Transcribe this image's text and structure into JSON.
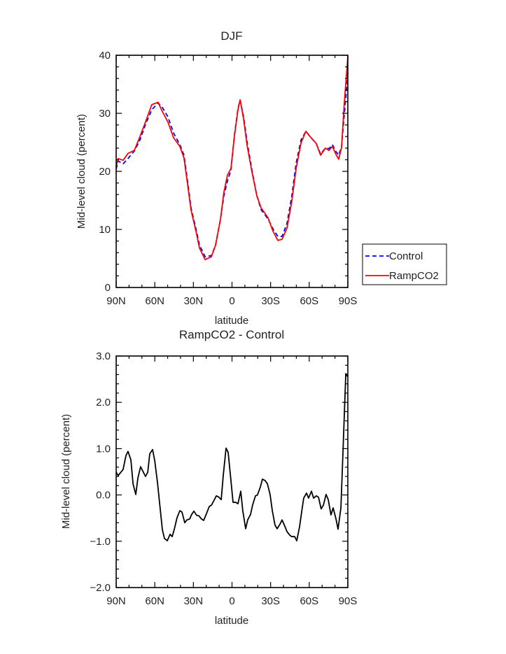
{
  "chart_data": [
    {
      "type": "line",
      "title": "DJF",
      "xlabel": "latitude",
      "ylabel": "Mid-level cloud (percent)",
      "xlim": [
        90,
        -90
      ],
      "ylim": [
        0,
        40
      ],
      "xticks": [
        90,
        60,
        30,
        0,
        -30,
        -60,
        -90
      ],
      "xtick_labels": [
        "90N",
        "60N",
        "30N",
        "0",
        "30S",
        "60S",
        "90S"
      ],
      "yticks": [
        0,
        10,
        20,
        30,
        40
      ],
      "ytick_labels": [
        "0",
        "10",
        "20",
        "30",
        "40"
      ],
      "legend": {
        "placement": "outside-right",
        "entries": [
          "Control",
          "RampCO2"
        ]
      },
      "series": [
        {
          "name": "Control",
          "color": "#0000ff",
          "style": "dashed",
          "x": [
            90,
            88.4,
            84.6,
            80.8,
            75.9,
            71.5,
            67.2,
            62.3,
            57.4,
            54.1,
            49.8,
            45.4,
            40.5,
            37.3,
            34.5,
            31.8,
            28.0,
            25.3,
            20.9,
            16.0,
            12.8,
            9.0,
            6.3,
            3.5,
            0.8,
            -1.9,
            -4.6,
            -6.3,
            -9.0,
            -11.7,
            -15.5,
            -19.3,
            -22.6,
            -28.0,
            -31.8,
            -35.6,
            -38.9,
            -42.7,
            -46.5,
            -49.8,
            -53.6,
            -57.4,
            -60.6,
            -65.5,
            -68.8,
            -72.6,
            -75.3,
            -78.0,
            -80.8,
            -82.9,
            -85.1,
            -87.3,
            -88.9,
            -90
          ],
          "y": [
            20.4,
            21.8,
            21.3,
            22.2,
            23.5,
            25.4,
            28.1,
            30.6,
            31.8,
            31.0,
            29.4,
            26.6,
            24.6,
            22.8,
            18.2,
            13.7,
            10.1,
            7.3,
            5.3,
            5.5,
            7.3,
            11.8,
            15.8,
            18.4,
            20.2,
            26.3,
            30.8,
            32.3,
            29.4,
            25.1,
            20.2,
            15.8,
            13.4,
            11.8,
            10.1,
            8.8,
            8.8,
            11.0,
            15.8,
            21.4,
            25.4,
            26.9,
            26.0,
            24.8,
            23.0,
            24.0,
            23.9,
            24.6,
            23.4,
            22.8,
            24.2,
            29.9,
            33.9,
            37.0
          ]
        },
        {
          "name": "RampCO2",
          "color": "#ff0000",
          "style": "solid",
          "x": [
            90,
            88.4,
            84.6,
            80.8,
            75.9,
            71.5,
            67.2,
            62.3,
            57.4,
            54.1,
            49.8,
            45.4,
            40.5,
            37.3,
            34.5,
            31.8,
            28.0,
            25.3,
            20.9,
            16.0,
            12.8,
            9.0,
            6.3,
            3.5,
            0.8,
            -1.9,
            -4.6,
            -6.3,
            -9.0,
            -11.7,
            -15.5,
            -19.3,
            -22.6,
            -28.0,
            -31.8,
            -35.6,
            -38.9,
            -42.7,
            -46.5,
            -49.8,
            -53.6,
            -57.4,
            -60.6,
            -65.5,
            -68.8,
            -72.6,
            -75.3,
            -78.0,
            -80.8,
            -82.9,
            -85.1,
            -87.3,
            -88.9,
            -90
          ],
          "y": [
            20.9,
            22.2,
            21.9,
            23.1,
            23.6,
            26.0,
            28.5,
            31.5,
            31.9,
            30.3,
            28.5,
            25.8,
            24.3,
            22.3,
            17.7,
            13.3,
            9.7,
            6.8,
            4.8,
            5.3,
            7.3,
            11.7,
            16.4,
            19.4,
            20.5,
            26.1,
            30.6,
            32.3,
            29.0,
            24.5,
            19.9,
            15.8,
            13.7,
            12.0,
            9.7,
            8.1,
            8.3,
            10.2,
            14.9,
            20.5,
            24.9,
            26.9,
            26.0,
            24.8,
            22.8,
            24.0,
            23.6,
            24.3,
            22.9,
            22.1,
            24.1,
            31.9,
            36.5,
            39.8
          ]
        }
      ]
    },
    {
      "type": "line",
      "title": "RampCO2 - Control",
      "xlabel": "latitude",
      "ylabel": "Mid-level cloud (percent)",
      "xlim": [
        90,
        -90
      ],
      "ylim": [
        -2.0,
        3.0
      ],
      "xticks": [
        90,
        60,
        30,
        0,
        -30,
        -60,
        -90
      ],
      "xtick_labels": [
        "90N",
        "60N",
        "30N",
        "0",
        "30S",
        "60S",
        "90S"
      ],
      "yticks": [
        -2.0,
        -1.0,
        0.0,
        1.0,
        2.0,
        3.0
      ],
      "ytick_labels": [
        "−2.0",
        "−1.0",
        "0.0",
        "1.0",
        "2.0",
        "3.0"
      ],
      "series": [
        {
          "name": "RampCO2 - Control",
          "color": "#000000",
          "style": "solid",
          "x": [
            90,
            88.4,
            84.6,
            82.4,
            80.8,
            78.6,
            76.9,
            74.8,
            73.1,
            71.0,
            67.2,
            65.5,
            63.9,
            61.7,
            60.1,
            57.9,
            54.1,
            52.5,
            50.3,
            48.1,
            46.5,
            44.9,
            42.7,
            40.5,
            38.9,
            36.7,
            35.1,
            32.9,
            31.3,
            29.6,
            27.5,
            25.8,
            23.7,
            22.0,
            19.9,
            17.7,
            16.0,
            14.4,
            12.2,
            10.6,
            8.4,
            6.8,
            4.6,
            3.0,
            0.8,
            -0.8,
            -3.0,
            -4.6,
            -6.8,
            -8.4,
            -10.6,
            -12.2,
            -14.4,
            -16.0,
            -18.2,
            -19.8,
            -22.0,
            -23.6,
            -25.8,
            -27.5,
            -29.6,
            -31.3,
            -33.4,
            -35.1,
            -37.3,
            -38.9,
            -41.1,
            -42.7,
            -44.9,
            -46.5,
            -48.7,
            -50.3,
            -52.5,
            -54.1,
            -55.7,
            -57.9,
            -59.5,
            -61.7,
            -63.4,
            -65.5,
            -67.2,
            -69.3,
            -71.0,
            -73.1,
            -74.8,
            -76.9,
            -78.6,
            -80.8,
            -82.4,
            -84.6,
            -86.2,
            -88.4,
            -90
          ],
          "y": [
            0.49,
            0.42,
            0.55,
            0.85,
            0.94,
            0.76,
            0.24,
            0.01,
            0.37,
            0.61,
            0.4,
            0.49,
            0.89,
            0.98,
            0.75,
            0.27,
            -0.75,
            -0.94,
            -0.99,
            -0.85,
            -0.9,
            -0.75,
            -0.49,
            -0.34,
            -0.37,
            -0.6,
            -0.54,
            -0.52,
            -0.42,
            -0.35,
            -0.44,
            -0.45,
            -0.52,
            -0.55,
            -0.41,
            -0.25,
            -0.22,
            -0.14,
            -0.02,
            -0.04,
            -0.1,
            0.42,
            1.01,
            0.92,
            0.31,
            -0.16,
            -0.16,
            -0.19,
            0.08,
            -0.34,
            -0.73,
            -0.54,
            -0.42,
            -0.22,
            -0.02,
            0.0,
            0.17,
            0.34,
            0.31,
            0.24,
            0.01,
            -0.34,
            -0.65,
            -0.73,
            -0.63,
            -0.54,
            -0.68,
            -0.79,
            -0.87,
            -0.9,
            -0.9,
            -0.99,
            -0.69,
            -0.37,
            -0.07,
            0.04,
            -0.07,
            0.08,
            -0.07,
            -0.02,
            -0.05,
            -0.3,
            -0.22,
            0.01,
            -0.1,
            -0.43,
            -0.28,
            -0.52,
            -0.74,
            -0.28,
            0.9,
            2.62,
            2.55
          ]
        }
      ]
    }
  ]
}
